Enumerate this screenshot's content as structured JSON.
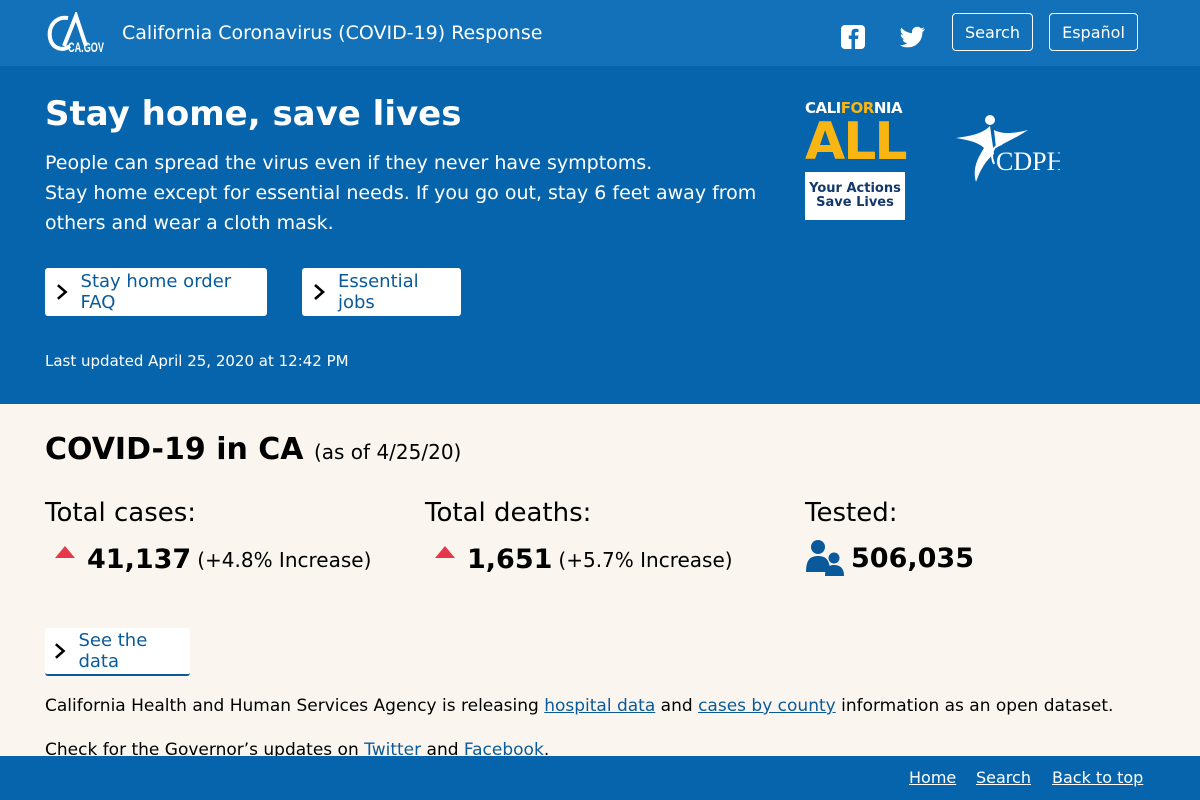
{
  "header": {
    "logo_text": "CA.GOV",
    "site_title": "California Coronavirus (COVID-19) Response",
    "search_label": "Search",
    "language_label": "Español",
    "social_icons": [
      "facebook-icon",
      "twitter-icon"
    ]
  },
  "hero": {
    "title": "Stay home, save lives",
    "line1": "People can spread the virus even if they never have symptoms.",
    "line2": "Stay home except for essential needs. If you go out, stay 6 feet away from",
    "line3": "others and wear a cloth mask.",
    "button1": "Stay home order FAQ",
    "button2": "Essential jobs",
    "updated": "Last updated April 25, 2020 at 12:42 PM",
    "badge": {
      "ca_part1": "CALI",
      "ca_for": "FOR",
      "ca_part2": "NIA",
      "all": "ALL",
      "actions_line1": "Your Actions",
      "actions_line2": "Save Lives"
    },
    "cdph_text": "CDPH"
  },
  "main": {
    "title": "COVID-19 in CA",
    "as_of": "(as of 4/25/20)",
    "stats": [
      {
        "label": "Total cases:",
        "value": "41,137",
        "change": "(+4.8% Increase)"
      },
      {
        "label": "Total deaths:",
        "value": "1,651",
        "change": "(+5.7% Increase)"
      },
      {
        "label": "Tested:",
        "value": "506,035"
      }
    ],
    "see_data": "See the data",
    "para1": {
      "before": "California Health and Human Services Agency is releasing ",
      "link1": "hospital data",
      "mid": " and ",
      "link2": "cases by county",
      "after": " information as an open dataset."
    },
    "para2": {
      "before": "Check for the Governor’s updates on ",
      "link1": "Twitter",
      "mid": " and ",
      "link2": "Facebook",
      "after": "."
    }
  },
  "footer": {
    "home": "Home",
    "search": "Search",
    "back_to_top": "Back to top"
  },
  "colors": {
    "header_bg": "#1271b8",
    "hero_bg": "#0564ac",
    "page_bg": "#faf6ef",
    "link": "#0a5a9b",
    "accent_gold": "#f9b612",
    "increase_red": "#e5384a"
  }
}
